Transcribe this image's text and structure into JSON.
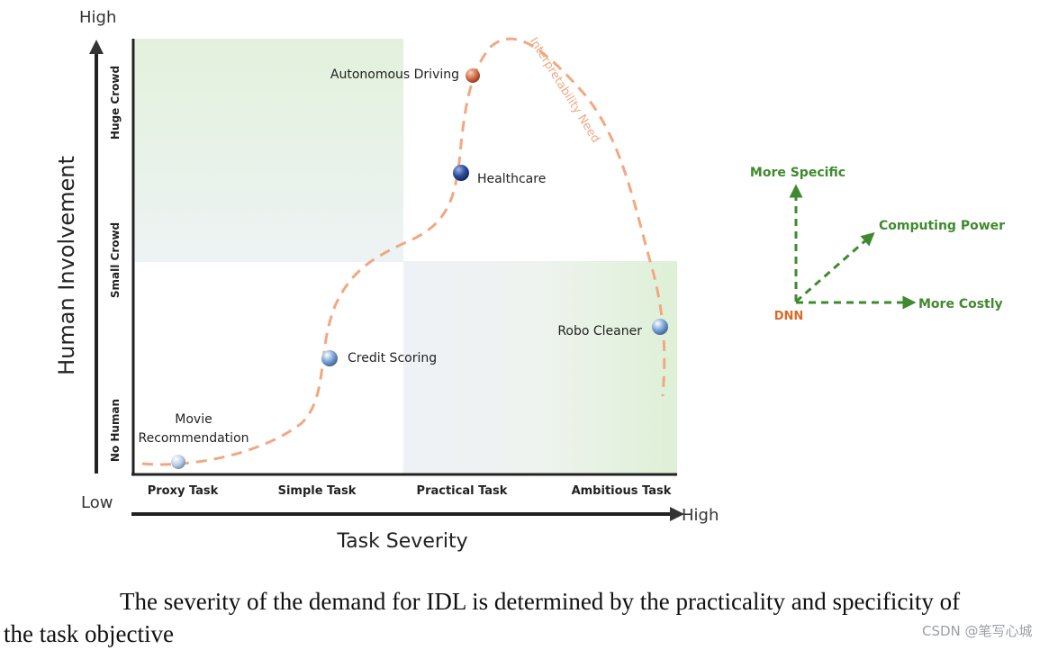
{
  "diagram": {
    "y_axis": {
      "title": "Human Involvement",
      "high_label": "High",
      "low_label": "Low",
      "levels": [
        "Huge Crowd",
        "Small Crowd",
        "No Human"
      ]
    },
    "x_axis": {
      "title": "Task Severity",
      "high_label": "High",
      "categories": [
        "Proxy Task",
        "Simple Task",
        "Practical Task",
        "Ambitious Task"
      ]
    },
    "curve_label": "Interpretability Need",
    "points": [
      {
        "label": "Autonomous Driving",
        "color": "#d0704a"
      },
      {
        "label": "Healthcare",
        "color": "#2a4c9c"
      },
      {
        "label": "Credit Scoring",
        "color": "#7aa3d6"
      },
      {
        "label": "Robo Cleaner",
        "color": "#7aa3d6"
      },
      {
        "label_line1": "Movie",
        "label_line2": "Recommendation",
        "color": "#b6cbe6"
      }
    ],
    "inset": {
      "origin": "DNN",
      "up": "More Specific",
      "diagonal": "Computing Power",
      "right": "More Costly",
      "arrow_color": "#3f8a2e",
      "origin_color": "#d86a2a"
    }
  },
  "caption": {
    "line1": "The severity of the demand for IDL is determined by the practicality and specificity of",
    "line2": "the task objective"
  },
  "watermark": "CSDN @笔写心城"
}
